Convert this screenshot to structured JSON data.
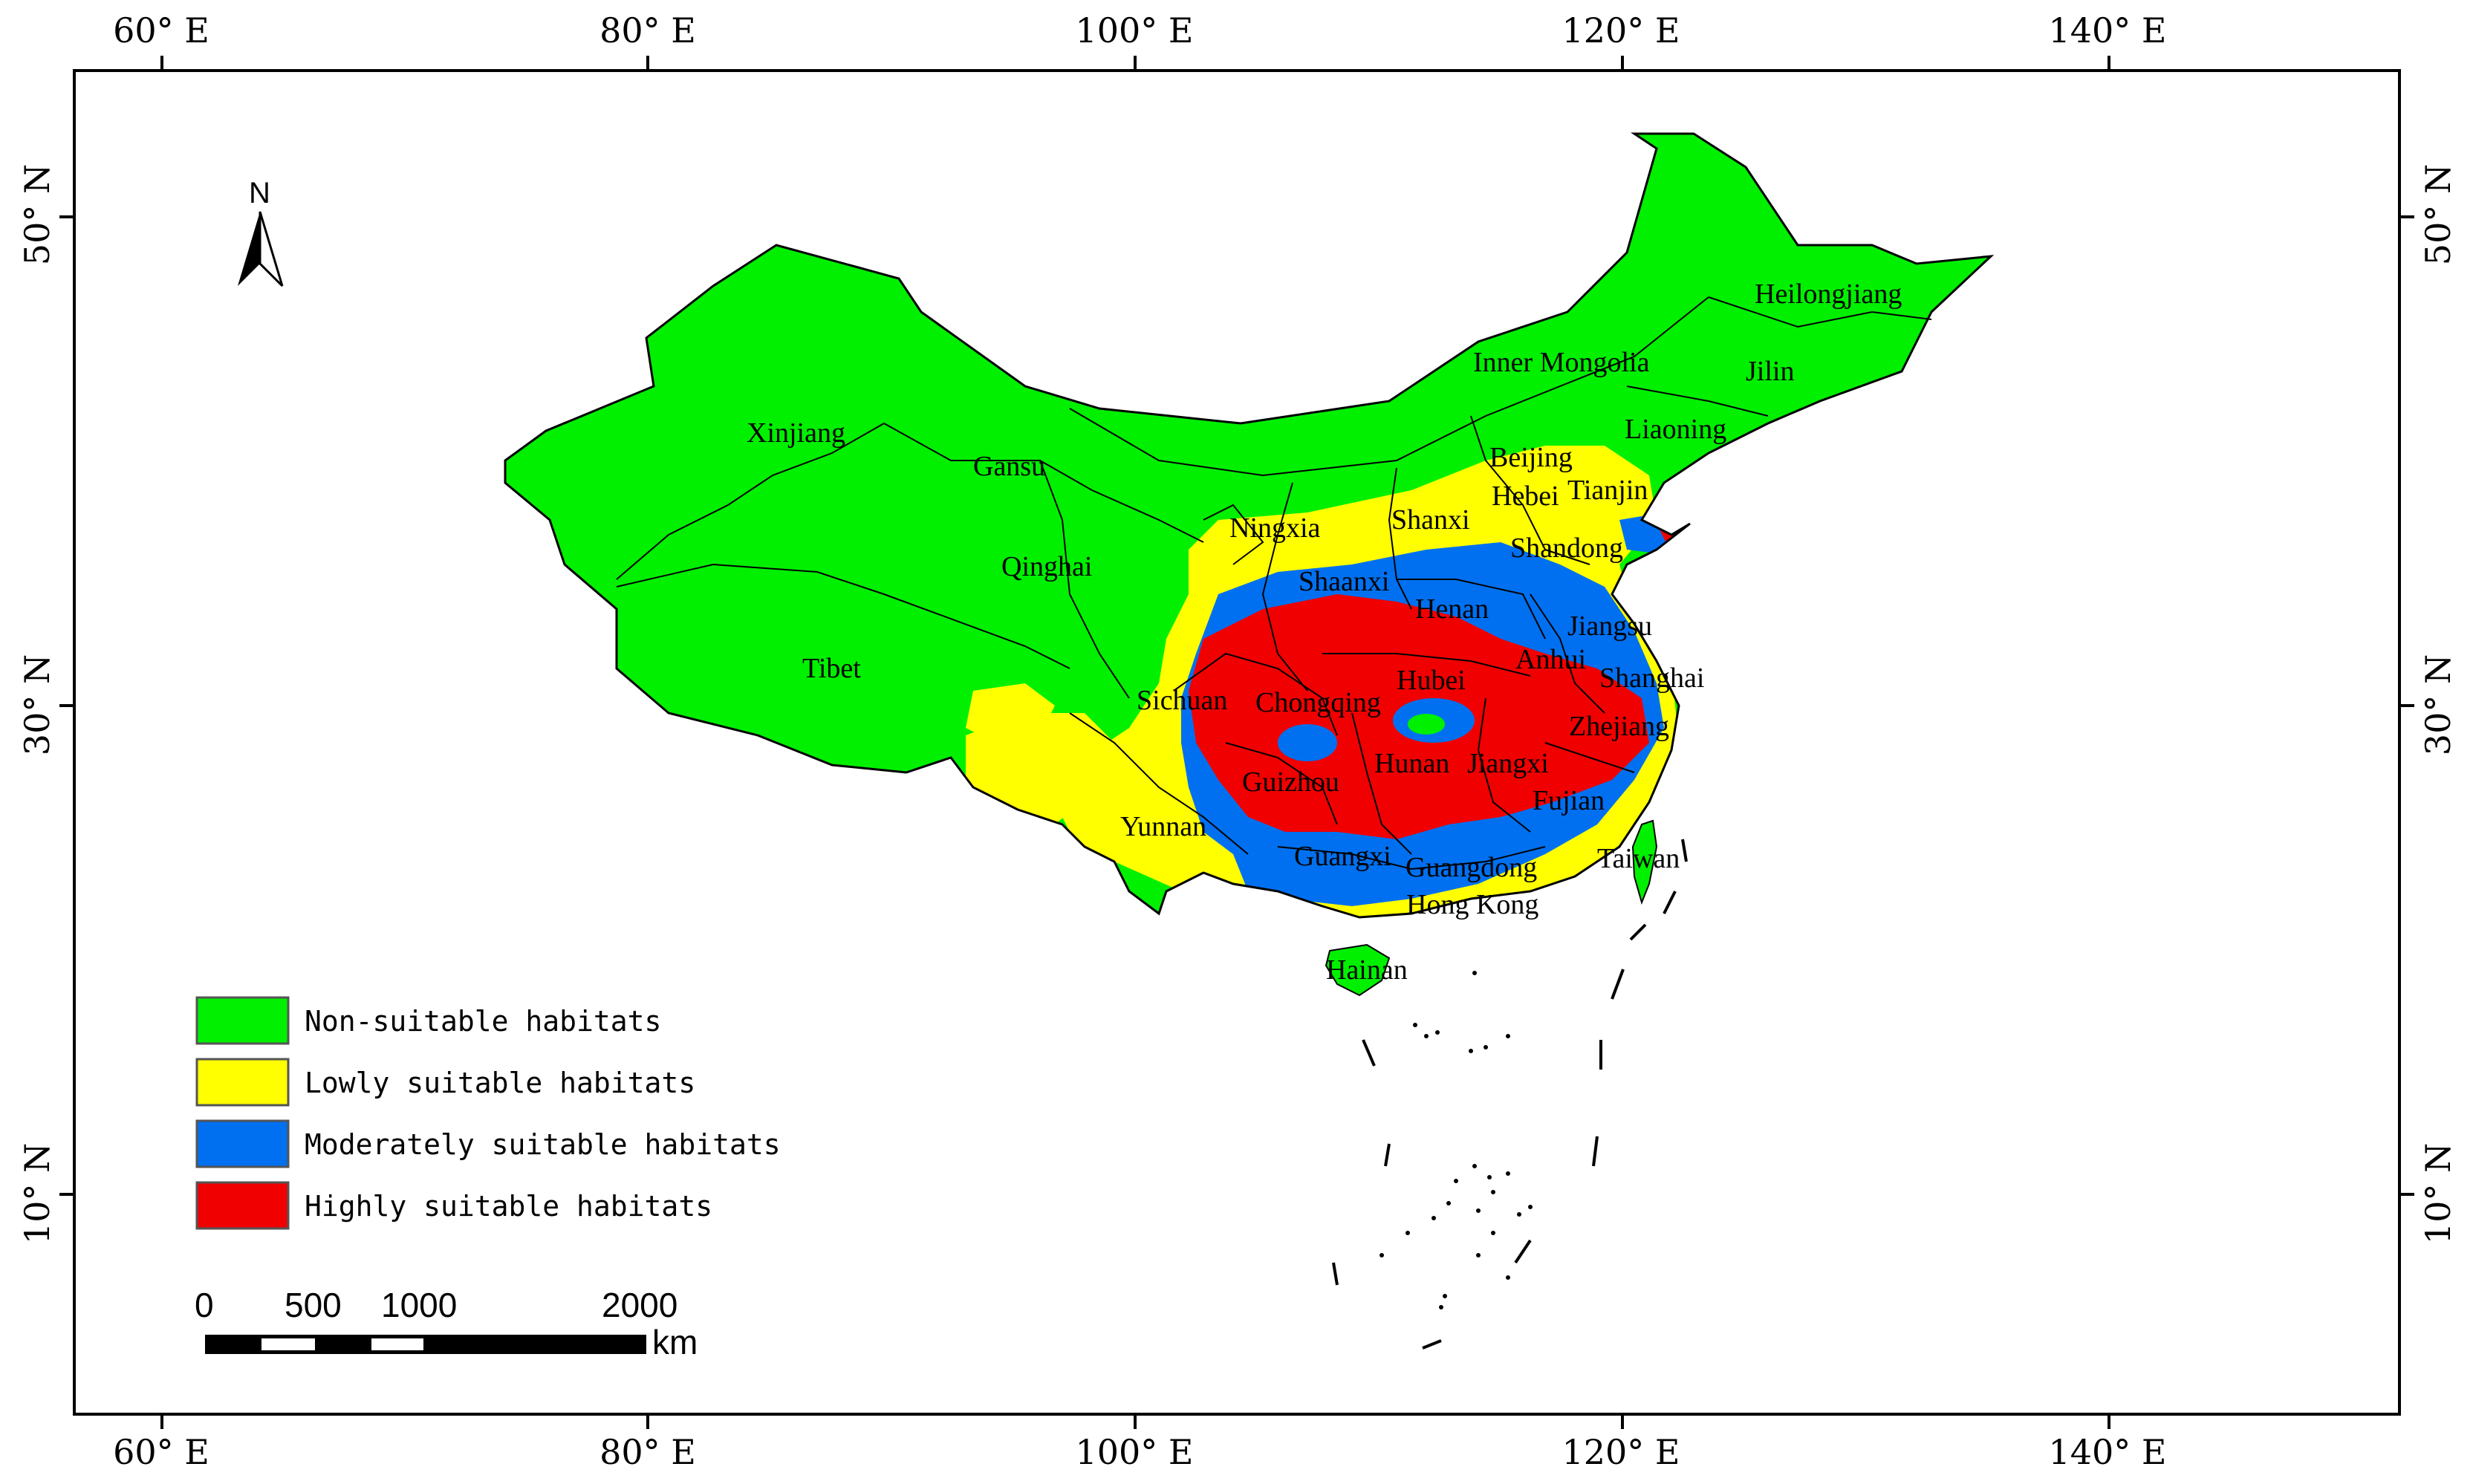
{
  "map": {
    "lon_labels": [
      "60° E",
      "80° E",
      "100° E",
      "120° E",
      "140° E"
    ],
    "lat_labels": [
      "50° N",
      "30° N",
      "10° N"
    ]
  },
  "provinces": [
    "Xinjiang",
    "Tibet",
    "Qinghai",
    "Gansu",
    "Inner Mongolia",
    "Heilongjiang",
    "Jilin",
    "Liaoning",
    "Beijing",
    "Tianjin",
    "Hebei",
    "Shanxi",
    "Ningxia",
    "Shaanxi",
    "Shandong",
    "Henan",
    "Jiangsu",
    "Anhui",
    "Shanghai",
    "Hubei",
    "Sichuan",
    "Chongqing",
    "Zhejiang",
    "Guizhou",
    "Hunan",
    "Jiangxi",
    "Fujian",
    "Yunnan",
    "Guangxi",
    "Guangdong",
    "Taiwan",
    "Hong Kong",
    "Hainan"
  ],
  "north_arrow": {
    "label": "N"
  },
  "legend": {
    "items": [
      {
        "label": "Non-suitable habitats",
        "color": "#00f000"
      },
      {
        "label": "Lowly suitable habitats",
        "color": "#ffff00"
      },
      {
        "label": "Moderately suitable habitats",
        "color": "#0070f0"
      },
      {
        "label": "Highly suitable habitats",
        "color": "#f00000"
      }
    ]
  },
  "scale_bar": {
    "labels": [
      "0",
      "500",
      "1000",
      "2000"
    ],
    "unit": "km"
  }
}
